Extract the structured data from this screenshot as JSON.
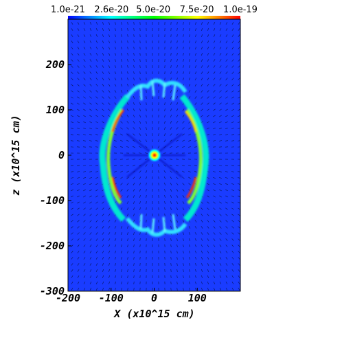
{
  "chart_data": {
    "type": "heatmap",
    "title": "",
    "xlabel": "X (x10^15 cm)",
    "ylabel": "z (x10^15 cm)",
    "xlim": [
      -200,
      200
    ],
    "ylim": [
      -300,
      300
    ],
    "x_ticks": [
      "-200",
      "-100",
      "0",
      "100"
    ],
    "y_ticks": [
      "200",
      "100",
      "0",
      "-100",
      "-200",
      "-300"
    ],
    "colorbar": {
      "ticks": [
        "1.0e-21",
        "2.6e-20",
        "5.0e-20",
        "7.5e-20",
        "1.0e-19"
      ],
      "values": [
        1e-21,
        2.6e-20,
        5e-20,
        7.5e-20,
        1e-19
      ],
      "range": [
        1e-21,
        1e-19
      ],
      "placement": "top",
      "colormap": [
        "#0000ff",
        "#00ffff",
        "#00ff00",
        "#ffff00",
        "#ff0000"
      ]
    },
    "background_value": 1e-21,
    "features": {
      "shell_half_width_x": 90,
      "shell_half_height_z": 120,
      "polar_cap_z": 110,
      "center_knot": [
        0,
        0
      ],
      "velocity_vectors": true
    }
  }
}
